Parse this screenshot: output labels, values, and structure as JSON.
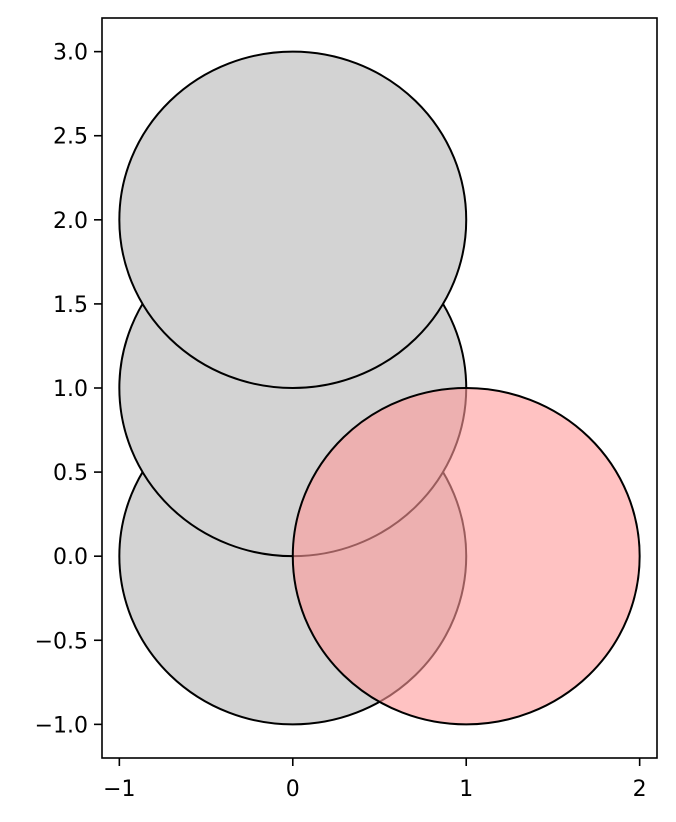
{
  "chart_data": {
    "type": "scatter",
    "title": "",
    "xlabel": "",
    "ylabel": "",
    "xlim": [
      -1.1,
      2.1
    ],
    "ylim": [
      -1.2,
      3.2
    ],
    "xticks": [
      -1,
      0,
      1,
      2
    ],
    "xtick_labels": [
      "−1",
      "0",
      "1",
      "2"
    ],
    "yticks": [
      -1.0,
      -0.5,
      0.0,
      0.5,
      1.0,
      1.5,
      2.0,
      2.5,
      3.0
    ],
    "ytick_labels": [
      "−1.0",
      "−0.5",
      "0.0",
      "0.5",
      "1.0",
      "1.5",
      "2.0",
      "2.5",
      "3.0"
    ],
    "grid": false,
    "aspect": "equal",
    "circles": [
      {
        "center": [
          0,
          0
        ],
        "radius": 1,
        "fill": "#d3d3d3",
        "opacity": 1.0
      },
      {
        "center": [
          0,
          1
        ],
        "radius": 1,
        "fill": "#d3d3d3",
        "opacity": 1.0
      },
      {
        "center": [
          0,
          2
        ],
        "radius": 1,
        "fill": "#d3d3d3",
        "opacity": 1.0
      },
      {
        "center": [
          1,
          0
        ],
        "radius": 1,
        "fill": "#ff9999",
        "opacity": 0.6
      }
    ]
  }
}
